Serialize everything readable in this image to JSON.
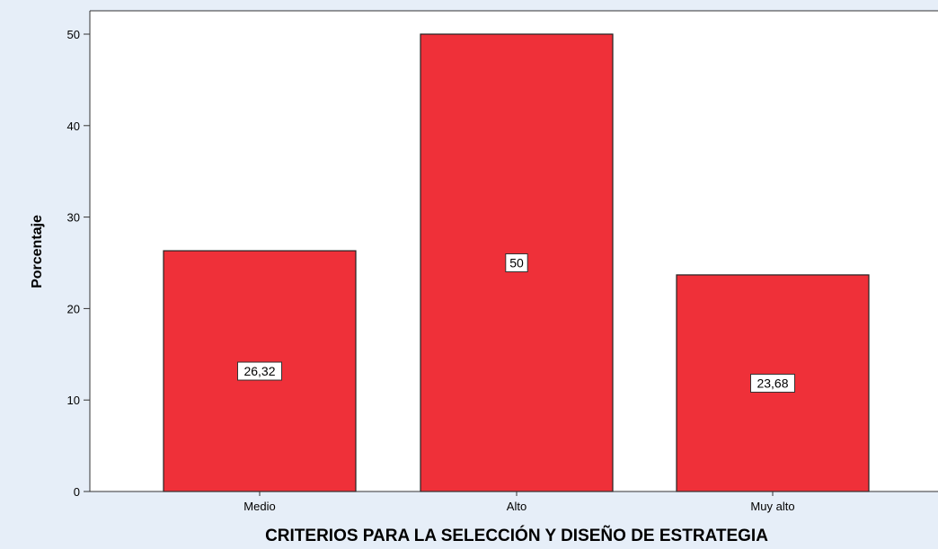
{
  "chart_data": {
    "type": "bar",
    "categories": [
      "Medio",
      "Alto",
      "Muy alto"
    ],
    "values": [
      26.32,
      50,
      23.68
    ],
    "data_labels": [
      "26,32",
      "50",
      "23,68"
    ],
    "xlabel": "CRITERIOS PARA LA SELECCIÓN Y DISEÑO DE ESTRATEGIA",
    "ylabel": "Porcentaje",
    "ylim": [
      0,
      50
    ],
    "yticks": [
      0,
      10,
      20,
      30,
      40,
      50
    ],
    "grid": false,
    "bar_color": "#ef3039",
    "plot_background": "#ffffff",
    "outer_background": "#e6eef8"
  }
}
